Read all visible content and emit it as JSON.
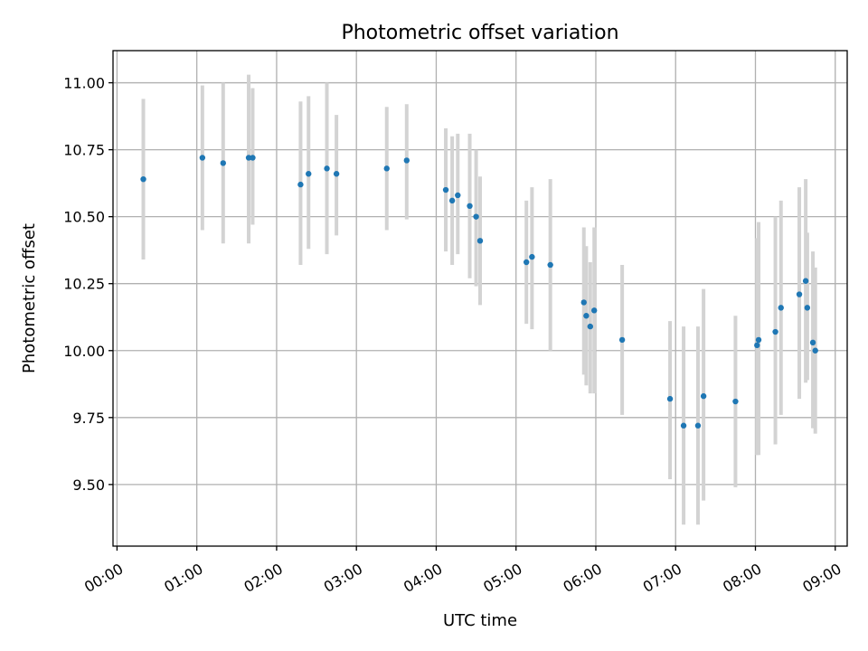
{
  "chart_data": {
    "type": "scatter",
    "title": "Photometric offset variation",
    "xlabel": "UTC time",
    "ylabel": "Photometric offset",
    "xlim": [
      -0.05,
      9.15
    ],
    "ylim": [
      9.27,
      11.12
    ],
    "grid": true,
    "x_ticks": [
      {
        "value": 0,
        "label": "00:00"
      },
      {
        "value": 1,
        "label": "01:00"
      },
      {
        "value": 2,
        "label": "02:00"
      },
      {
        "value": 3,
        "label": "03:00"
      },
      {
        "value": 4,
        "label": "04:00"
      },
      {
        "value": 5,
        "label": "05:00"
      },
      {
        "value": 6,
        "label": "06:00"
      },
      {
        "value": 7,
        "label": "07:00"
      },
      {
        "value": 8,
        "label": "08:00"
      },
      {
        "value": 9,
        "label": "09:00"
      }
    ],
    "y_ticks": [
      {
        "value": 9.5,
        "label": "9.50"
      },
      {
        "value": 9.75,
        "label": "9.75"
      },
      {
        "value": 10.0,
        "label": "10.00"
      },
      {
        "value": 10.25,
        "label": "10.25"
      },
      {
        "value": 10.5,
        "label": "10.50"
      },
      {
        "value": 10.75,
        "label": "10.75"
      },
      {
        "value": 11.0,
        "label": "11.00"
      }
    ],
    "points": [
      {
        "x": 0.33,
        "y": 10.64,
        "low": 10.34,
        "high": 10.94
      },
      {
        "x": 1.07,
        "y": 10.72,
        "low": 10.45,
        "high": 10.99
      },
      {
        "x": 1.33,
        "y": 10.7,
        "low": 10.4,
        "high": 11.0
      },
      {
        "x": 1.65,
        "y": 10.72,
        "low": 10.4,
        "high": 11.03
      },
      {
        "x": 1.7,
        "y": 10.72,
        "low": 10.47,
        "high": 10.98
      },
      {
        "x": 2.3,
        "y": 10.62,
        "low": 10.32,
        "high": 10.93
      },
      {
        "x": 2.4,
        "y": 10.66,
        "low": 10.38,
        "high": 10.95
      },
      {
        "x": 2.63,
        "y": 10.68,
        "low": 10.36,
        "high": 11.0
      },
      {
        "x": 2.75,
        "y": 10.66,
        "low": 10.43,
        "high": 10.88
      },
      {
        "x": 3.38,
        "y": 10.68,
        "low": 10.45,
        "high": 10.91
      },
      {
        "x": 3.63,
        "y": 10.71,
        "low": 10.49,
        "high": 10.92
      },
      {
        "x": 4.12,
        "y": 10.6,
        "low": 10.37,
        "high": 10.83
      },
      {
        "x": 4.2,
        "y": 10.56,
        "low": 10.32,
        "high": 10.8
      },
      {
        "x": 4.27,
        "y": 10.58,
        "low": 10.36,
        "high": 10.81
      },
      {
        "x": 4.42,
        "y": 10.54,
        "low": 10.27,
        "high": 10.81
      },
      {
        "x": 4.5,
        "y": 10.5,
        "low": 10.24,
        "high": 10.75
      },
      {
        "x": 4.55,
        "y": 10.41,
        "low": 10.17,
        "high": 10.65
      },
      {
        "x": 5.13,
        "y": 10.33,
        "low": 10.1,
        "high": 10.56
      },
      {
        "x": 5.2,
        "y": 10.35,
        "low": 10.08,
        "high": 10.61
      },
      {
        "x": 5.43,
        "y": 10.32,
        "low": 10.0,
        "high": 10.64
      },
      {
        "x": 5.85,
        "y": 10.18,
        "low": 9.91,
        "high": 10.46
      },
      {
        "x": 5.88,
        "y": 10.13,
        "low": 9.87,
        "high": 10.39
      },
      {
        "x": 5.93,
        "y": 10.09,
        "low": 9.84,
        "high": 10.33
      },
      {
        "x": 5.98,
        "y": 10.15,
        "low": 9.84,
        "high": 10.46
      },
      {
        "x": 6.33,
        "y": 10.04,
        "low": 9.76,
        "high": 10.32
      },
      {
        "x": 6.93,
        "y": 9.82,
        "low": 9.52,
        "high": 10.11
      },
      {
        "x": 7.1,
        "y": 9.72,
        "low": 9.35,
        "high": 10.09
      },
      {
        "x": 7.28,
        "y": 9.72,
        "low": 9.35,
        "high": 10.09
      },
      {
        "x": 7.35,
        "y": 9.83,
        "low": 9.44,
        "high": 10.23
      },
      {
        "x": 7.75,
        "y": 9.81,
        "low": 9.49,
        "high": 10.13
      },
      {
        "x": 8.02,
        "y": 10.02,
        "low": 9.61,
        "high": 10.42
      },
      {
        "x": 8.04,
        "y": 10.04,
        "low": 9.61,
        "high": 10.48
      },
      {
        "x": 8.25,
        "y": 10.07,
        "low": 9.65,
        "high": 10.5
      },
      {
        "x": 8.32,
        "y": 10.16,
        "low": 9.76,
        "high": 10.56
      },
      {
        "x": 8.55,
        "y": 10.21,
        "low": 9.82,
        "high": 10.61
      },
      {
        "x": 8.63,
        "y": 10.26,
        "low": 9.88,
        "high": 10.64
      },
      {
        "x": 8.65,
        "y": 10.16,
        "low": 9.89,
        "high": 10.44
      },
      {
        "x": 8.72,
        "y": 10.03,
        "low": 9.71,
        "high": 10.37
      },
      {
        "x": 8.75,
        "y": 10.0,
        "low": 9.69,
        "high": 10.31
      }
    ]
  }
}
